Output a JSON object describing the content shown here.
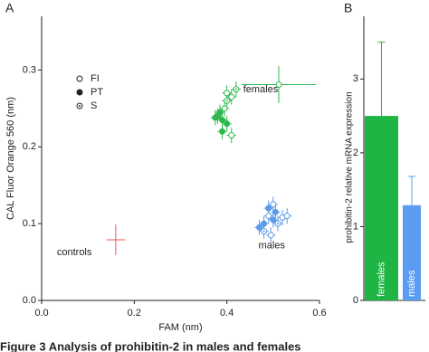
{
  "panels": [
    {
      "label": "A",
      "chart_data": {
        "type": "scatter",
        "xlabel": "FAM (nm)",
        "ylabel": "CAL Fluor Orange 560 (nm)",
        "xlim": [
          0,
          0.6
        ],
        "ylim": [
          0,
          0.37
        ],
        "xticks": [
          {
            "value": 0,
            "label": "0.0"
          },
          0.2,
          0.4,
          0.6
        ],
        "yticks": [
          {
            "value": 0,
            "label": "0.0"
          },
          0.1,
          0.2,
          0.3
        ],
        "legend": [
          {
            "label": "FI",
            "marker": "open"
          },
          {
            "label": "PT",
            "marker": "filled"
          },
          {
            "label": "S",
            "marker": "dot"
          }
        ],
        "groups": [
          {
            "name": "females",
            "color": "#2db84d",
            "x": [
              0.38,
              0.39,
              0.395,
              0.4,
              0.41,
              0.42,
              0.39,
              0.4,
              0.41,
              0.385,
              0.375,
              0.4,
              0.512
            ],
            "y": [
              0.24,
              0.235,
              0.25,
              0.26,
              0.265,
              0.275,
              0.22,
              0.23,
              0.215,
              0.245,
              0.238,
              0.27,
              0.281
            ],
            "xerr": [
              0.01,
              0.01,
              0.01,
              0.01,
              0.01,
              0.01,
              0.01,
              0.01,
              0.01,
              0.01,
              0.01,
              0.01,
              0.08
            ],
            "yerr": [
              0.01,
              0.01,
              0.01,
              0.01,
              0.01,
              0.01,
              0.01,
              0.01,
              0.01,
              0.01,
              0.01,
              0.01,
              0.024
            ],
            "markers": [
              "filled",
              "filled",
              "open",
              "dot",
              "open",
              "dot",
              "filled",
              "filled",
              "open",
              "filled",
              "filled",
              "open",
              "open"
            ]
          },
          {
            "name": "males",
            "color": "#5b9be8",
            "x": [
              0.48,
              0.49,
              0.5,
              0.51,
              0.52,
              0.49,
              0.5,
              0.48,
              0.47,
              0.505,
              0.495,
              0.53
            ],
            "y": [
              0.1,
              0.11,
              0.105,
              0.1,
              0.108,
              0.12,
              0.125,
              0.09,
              0.095,
              0.115,
              0.085,
              0.11
            ],
            "xerr": [
              0.01,
              0.01,
              0.01,
              0.01,
              0.01,
              0.01,
              0.01,
              0.01,
              0.01,
              0.01,
              0.01,
              0.01
            ],
            "yerr": [
              0.01,
              0.01,
              0.01,
              0.01,
              0.01,
              0.01,
              0.01,
              0.01,
              0.01,
              0.01,
              0.01,
              0.01
            ],
            "markers": [
              "filled",
              "open",
              "filled",
              "dot",
              "open",
              "filled",
              "open",
              "dot",
              "filled",
              "filled",
              "open",
              "open"
            ]
          },
          {
            "name": "controls",
            "color": "#e8584f",
            "x": [
              0.16
            ],
            "y": [
              0.079
            ],
            "xerr": [
              0.02
            ],
            "yerr": [
              0.02
            ],
            "markers": [
              "none"
            ]
          }
        ]
      }
    },
    {
      "label": "B",
      "chart_data": {
        "type": "bar",
        "ylabel": "prohibitin-2 relative mRNA expression",
        "ylim": [
          0,
          3.85
        ],
        "yticks": [
          0,
          1,
          2,
          3
        ],
        "categories": [
          "females",
          "males"
        ],
        "values": [
          2.5,
          1.29
        ],
        "errors": [
          1.0,
          0.39
        ],
        "colors": [
          "#1fb544",
          "#5c9cf0"
        ]
      }
    }
  ],
  "caption": "Figure 3    Analysis of prohibitin-2 in males and females"
}
